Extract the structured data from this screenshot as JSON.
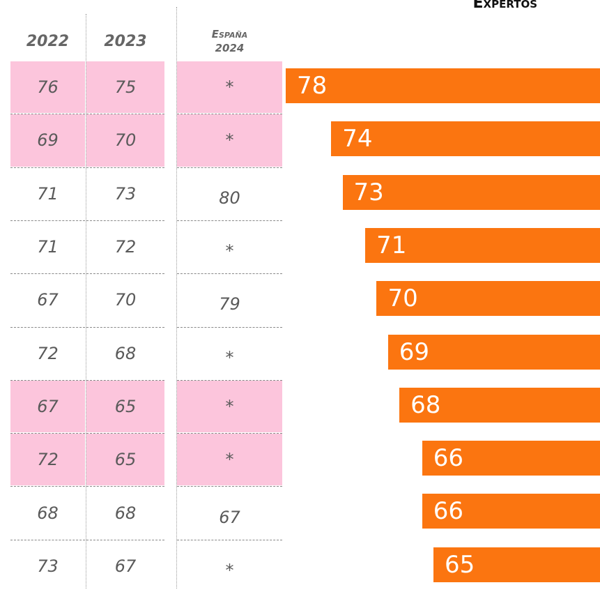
{
  "header": "Expertos",
  "table": {
    "headers": [
      "2022",
      "2023",
      "España 2024"
    ],
    "rows": [
      [
        76,
        75,
        "*"
      ],
      [
        69,
        70,
        "*"
      ],
      [
        71,
        73,
        80
      ],
      [
        71,
        72,
        "*"
      ],
      [
        67,
        70,
        79
      ],
      [
        72,
        68,
        "*"
      ],
      [
        67,
        65,
        "*"
      ],
      [
        72,
        65,
        "*"
      ],
      [
        68,
        68,
        67
      ],
      [
        73,
        67,
        "*"
      ]
    ],
    "highlight_rows": [
      0,
      1,
      6,
      7
    ],
    "highlight_color": "#fcc5dc"
  },
  "chart_data": {
    "type": "bar",
    "values": [
      78,
      74,
      73,
      71,
      70,
      69,
      68,
      66,
      66,
      65
    ],
    "color": "#fb7510"
  }
}
